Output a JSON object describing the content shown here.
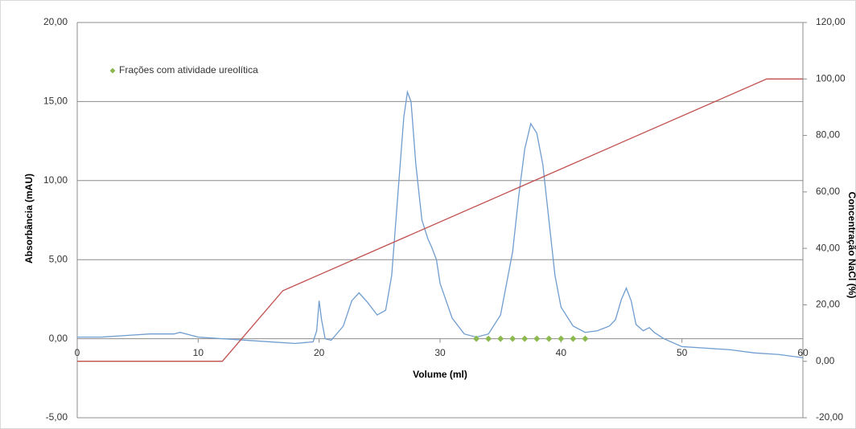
{
  "chart_data": {
    "type": "line",
    "xlabel": "Volume (ml)",
    "ylabel": "Absorbância (mAU)",
    "y2label": "Concentração NaCl (%)",
    "xlim": [
      0,
      60
    ],
    "xticks": [
      0,
      10,
      20,
      30,
      40,
      50,
      60
    ],
    "ylim": [
      -5,
      20
    ],
    "yticks": [
      {
        "value": -5,
        "label": "-5,00"
      },
      {
        "value": 0,
        "label": "0,00"
      },
      {
        "value": 5,
        "label": "5,00"
      },
      {
        "value": 10,
        "label": "10,00"
      },
      {
        "value": 15,
        "label": "15,00"
      },
      {
        "value": 20,
        "label": "20,00"
      }
    ],
    "y2lim": [
      -20,
      120
    ],
    "y2ticks": [
      {
        "value": -20,
        "label": "-20,00"
      },
      {
        "value": 0,
        "label": "0,00"
      },
      {
        "value": 20,
        "label": "20,00"
      },
      {
        "value": 40,
        "label": "40,00"
      },
      {
        "value": 60,
        "label": "60,00"
      },
      {
        "value": 80,
        "label": "80,00"
      },
      {
        "value": 100,
        "label": "100,00"
      },
      {
        "value": 120,
        "label": "120,00"
      }
    ],
    "grid": true,
    "legend": "upper left",
    "series": [
      {
        "color": "#6f9dd0",
        "kind": "line",
        "x": [
          0,
          2,
          4,
          6,
          8,
          8.5,
          10,
          12,
          14,
          16,
          18,
          19.5,
          19.8,
          20,
          20.2,
          20.5,
          21,
          22,
          22.7,
          23.3,
          24,
          24.8,
          25.5,
          26,
          26.5,
          27,
          27.3,
          27.6,
          28,
          28.5,
          29,
          29.3,
          29.7,
          30,
          31,
          32,
          33,
          34,
          35,
          36,
          36.5,
          37,
          37.5,
          38,
          38.5,
          39,
          39.5,
          40,
          41,
          42,
          43,
          44,
          44.5,
          45,
          45.4,
          45.8,
          46.2,
          46.8,
          47.3,
          47.7,
          48.5,
          50,
          52,
          54,
          56,
          58,
          60
        ],
        "values": [
          0.1,
          0.1,
          0.2,
          0.3,
          0.3,
          0.4,
          0.1,
          0,
          -0.1,
          -0.2,
          -0.3,
          -0.2,
          0.5,
          2.4,
          1.2,
          0,
          -0.1,
          0.8,
          2.4,
          2.9,
          2.3,
          1.5,
          1.8,
          4,
          9,
          14,
          15.6,
          15,
          11,
          7.5,
          6.3,
          5.8,
          5,
          3.5,
          1.3,
          0.3,
          0.1,
          0.3,
          1.5,
          5.5,
          9,
          12,
          13.6,
          13,
          11,
          7.5,
          4,
          2,
          0.8,
          0.4,
          0.5,
          0.8,
          1.2,
          2.5,
          3.2,
          2.4,
          0.9,
          0.5,
          0.7,
          0.4,
          0,
          -0.5,
          -0.6,
          -0.7,
          -0.9,
          -1,
          -1.2
        ]
      },
      {
        "color": "#c0504d",
        "kind": "line",
        "axis": "y2",
        "x": [
          0,
          12,
          17,
          57,
          60
        ],
        "values": [
          0,
          0,
          25,
          100,
          100
        ]
      },
      {
        "name": "Frações com atividade ureolítica",
        "color": "#8cb94f",
        "kind": "scatter",
        "x": [
          33,
          34,
          35,
          36,
          37,
          38,
          39,
          40,
          41,
          42
        ],
        "values": [
          0,
          0,
          0,
          0,
          0,
          0,
          0,
          0,
          0,
          0
        ]
      }
    ]
  }
}
